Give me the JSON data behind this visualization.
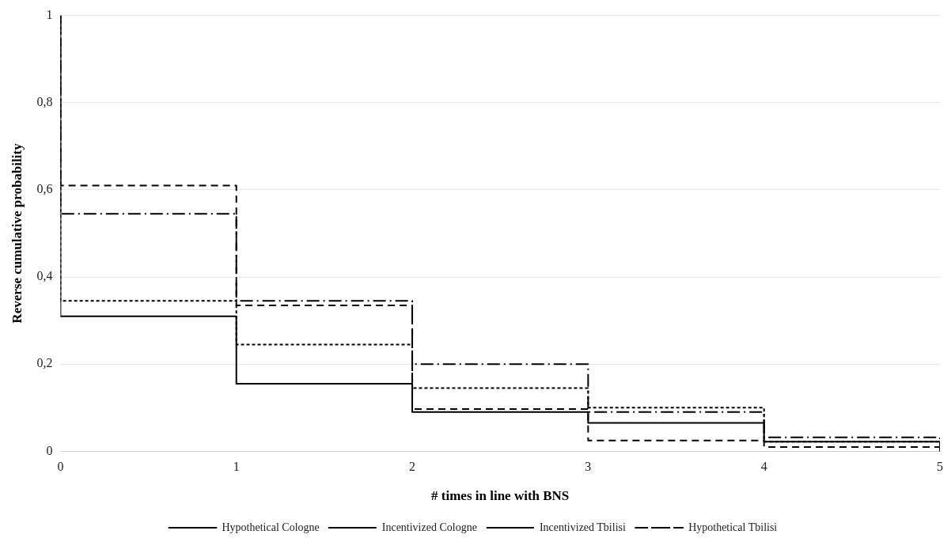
{
  "chart_data": {
    "type": "step",
    "xlabel": "# times in line with BNS",
    "ylabel": "Reverse cumulative probability",
    "x": [
      0,
      0,
      1,
      2,
      3,
      4,
      5
    ],
    "series": [
      {
        "name": "Hypothetical Cologne",
        "color": "#000000",
        "line_style": "solid",
        "values": [
          1,
          0.31,
          0.155,
          0.09,
          0.065,
          0.022,
          0
        ]
      },
      {
        "name": "Incentivized Cologne",
        "color": "#000000",
        "line_style": "dotted",
        "values": [
          1,
          0.345,
          0.245,
          0.145,
          0.1,
          0.022,
          0
        ]
      },
      {
        "name": "Incentivized Tbilisi",
        "color": "#000000",
        "line_style": "dashed",
        "values": [
          1,
          0.61,
          0.335,
          0.097,
          0.025,
          0.01,
          0
        ]
      },
      {
        "name": "Hypothetical Tbilisi",
        "color": "#000000",
        "line_style": "dashdot",
        "values": [
          1,
          0.545,
          0.345,
          0.2,
          0.09,
          0.032,
          0
        ]
      }
    ],
    "xlim": [
      0,
      5
    ],
    "xticks": [
      0,
      1,
      2,
      3,
      4,
      5
    ],
    "ylim": [
      0,
      1
    ],
    "yticks": [
      0,
      {
        "value": 0.2,
        "label": "0,2"
      },
      {
        "value": 0.4,
        "label": "0,4"
      },
      {
        "value": 0.6,
        "label": "0,6"
      },
      {
        "value": 0.8,
        "label": "0,8"
      },
      1
    ],
    "grid": "y",
    "legend": "bottom",
    "marker": "none"
  }
}
